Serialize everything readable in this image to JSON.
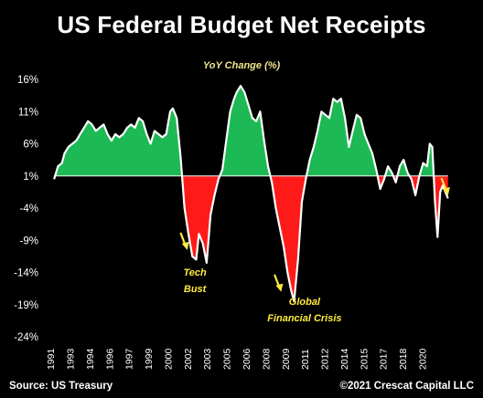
{
  "title": "US Federal Budget Net Receipts",
  "subtitle": "YoY Change (%)",
  "source": "Source: US Treasury",
  "copyright": "©2021 Crescat Capital LLC",
  "colors": {
    "positive": "#1db954",
    "negative": "#ff1a1a",
    "line": "#ffffff",
    "arrow": "#ffeb3b",
    "zero": "#ffffff"
  },
  "chart_data": {
    "type": "area",
    "title": "US Federal Budget Net Receipts",
    "subtitle": "YoY Change (%)",
    "ylim": [
      -24,
      16
    ],
    "yticks": [
      "16%",
      "11%",
      "6%",
      "1%",
      "-4%",
      "-9%",
      "-14%",
      "-19%",
      "-24%"
    ],
    "ytick_values": [
      16,
      11,
      6,
      1,
      -4,
      -9,
      -14,
      -19,
      -24
    ],
    "xlim": [
      1990.5,
      2021.5
    ],
    "xticks": [
      "1991",
      "1993",
      "1994",
      "1996",
      "1997",
      "1999",
      "2000",
      "2002",
      "2003",
      "2005",
      "2006",
      "2008",
      "2009",
      "2011",
      "2012",
      "2014",
      "2015",
      "2017",
      "2018",
      "2020"
    ],
    "xtick_values": [
      1991,
      1992.5,
      1994,
      1995.5,
      1997,
      1998.5,
      2000,
      2001.5,
      2003,
      2004.5,
      2006,
      2007.5,
      2009,
      2010.5,
      2012,
      2013.5,
      2015,
      2016.5,
      2018,
      2019.5
    ],
    "baseline": 1,
    "series": [
      {
        "x": [
          1991.0,
          1991.3,
          1991.6,
          1991.8,
          1992.1,
          1992.4,
          1992.7,
          1993.0,
          1993.3,
          1993.6,
          1993.9,
          1994.2,
          1994.5,
          1994.8,
          1995.1,
          1995.4,
          1995.7,
          1996.0,
          1996.3,
          1996.6,
          1996.9,
          1997.2,
          1997.5,
          1997.8,
          1998.1,
          1998.4,
          1998.7,
          1999.0,
          1999.3,
          1999.6,
          1999.9,
          2000.1,
          2000.4,
          2000.7,
          2001.0,
          2001.3,
          2001.6,
          2001.9,
          2002.1,
          2002.4,
          2002.7,
          2003.0,
          2003.3,
          2003.6,
          2003.9,
          2004.2,
          2004.5,
          2004.8,
          2005.0,
          2005.3,
          2005.6,
          2005.9,
          2006.2,
          2006.5,
          2006.8,
          2007.1,
          2007.4,
          2007.7,
          2008.0,
          2008.3,
          2008.6,
          2008.9,
          2009.2,
          2009.4,
          2009.7,
          2010.0,
          2010.3,
          2010.6,
          2010.9,
          2011.2,
          2011.5,
          2011.8,
          2012.1,
          2012.4,
          2012.7,
          2013.0,
          2013.3,
          2013.6,
          2013.9,
          2014.2,
          2014.5,
          2014.8,
          2015.1,
          2015.4,
          2015.7,
          2016.0,
          2016.3,
          2016.6,
          2016.9,
          2017.2,
          2017.5,
          2017.8,
          2018.1,
          2018.4,
          2018.7,
          2019.0,
          2019.3,
          2019.6,
          2019.8,
          2020.0,
          2020.2,
          2020.4,
          2020.6,
          2020.8,
          2021.0,
          2021.2
        ],
        "y": [
          0.5,
          2.5,
          3.0,
          4.5,
          5.5,
          6.0,
          6.5,
          7.5,
          8.5,
          9.5,
          9.0,
          8.0,
          8.5,
          9.0,
          7.5,
          6.5,
          7.5,
          7.0,
          7.5,
          8.5,
          9.0,
          8.5,
          10.0,
          9.5,
          7.5,
          6.0,
          8.0,
          7.5,
          7.0,
          7.5,
          11.0,
          11.5,
          10.0,
          4.0,
          -4.0,
          -8.0,
          -11.5,
          -12.0,
          -8.0,
          -9.5,
          -12.5,
          -5.0,
          -2.0,
          0.5,
          2.0,
          6.5,
          11.0,
          13.0,
          14.0,
          15.0,
          14.0,
          12.0,
          10.0,
          9.5,
          11.0,
          6.5,
          2.5,
          0.0,
          -4.0,
          -7.0,
          -10.0,
          -14.0,
          -17.0,
          -18.5,
          -12.0,
          -3.0,
          0.5,
          3.5,
          5.5,
          8.0,
          11.0,
          10.5,
          10.0,
          13.0,
          12.5,
          13.0,
          10.0,
          5.5,
          8.0,
          10.5,
          10.0,
          7.5,
          6.0,
          4.5,
          2.0,
          -1.0,
          0.5,
          2.5,
          1.5,
          0.0,
          2.5,
          3.5,
          1.5,
          0.5,
          -2.0,
          1.0,
          3.0,
          2.5,
          6.0,
          5.5,
          -3.0,
          -8.5,
          -1.5,
          -0.5,
          -1.5,
          -2.5
        ]
      }
    ],
    "annotations": [
      {
        "text": [
          "Tech",
          "Bust"
        ],
        "x": 2001.8,
        "y": -14.5,
        "arrow_x": 2001.0,
        "arrow_y": -10.5
      },
      {
        "text": [
          "Global",
          "Financial Crisis"
        ],
        "x": 2010.2,
        "y": -19.0,
        "arrow_x": 2008.2,
        "arrow_y": -17.0
      },
      {
        "text": [],
        "x": 2021.0,
        "y": -2.0,
        "arrow_x": 2021.0,
        "arrow_y": -2.0
      }
    ]
  }
}
